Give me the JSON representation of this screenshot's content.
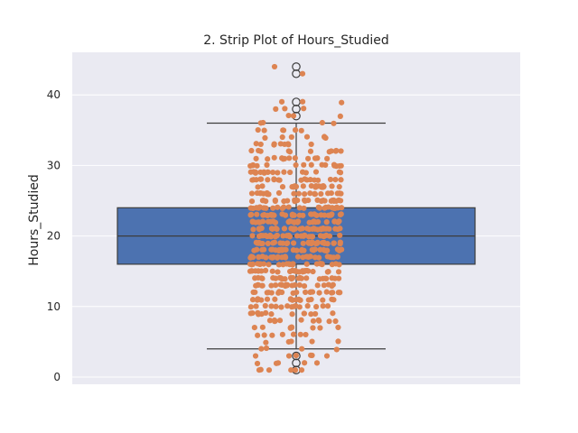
{
  "chart_data": {
    "type": "strip+box",
    "title": "2. Strip Plot of Hours_Studied",
    "xlabel": "",
    "ylabel": "Hours_Studied",
    "ylim": [
      -1,
      47
    ],
    "yticks": [
      0,
      10,
      20,
      30,
      40
    ],
    "grid": true,
    "box": {
      "q1": 16,
      "median": 20,
      "q3": 24,
      "whisker_low": 4,
      "whisker_high": 36,
      "outliers": [
        1,
        2,
        3,
        37,
        38,
        39,
        43,
        44
      ],
      "color": "#4c72b0"
    },
    "strip": {
      "color": "#dd8452",
      "min": 1,
      "max": 44,
      "notable_points": [
        1,
        2,
        3,
        39,
        43,
        44
      ],
      "count_shape": "dense integer values 1-44, peaked near 20"
    },
    "colors": {
      "background": "#eaeaf2",
      "grid": "#ffffff",
      "box_edge": "#3d3d3d"
    }
  }
}
